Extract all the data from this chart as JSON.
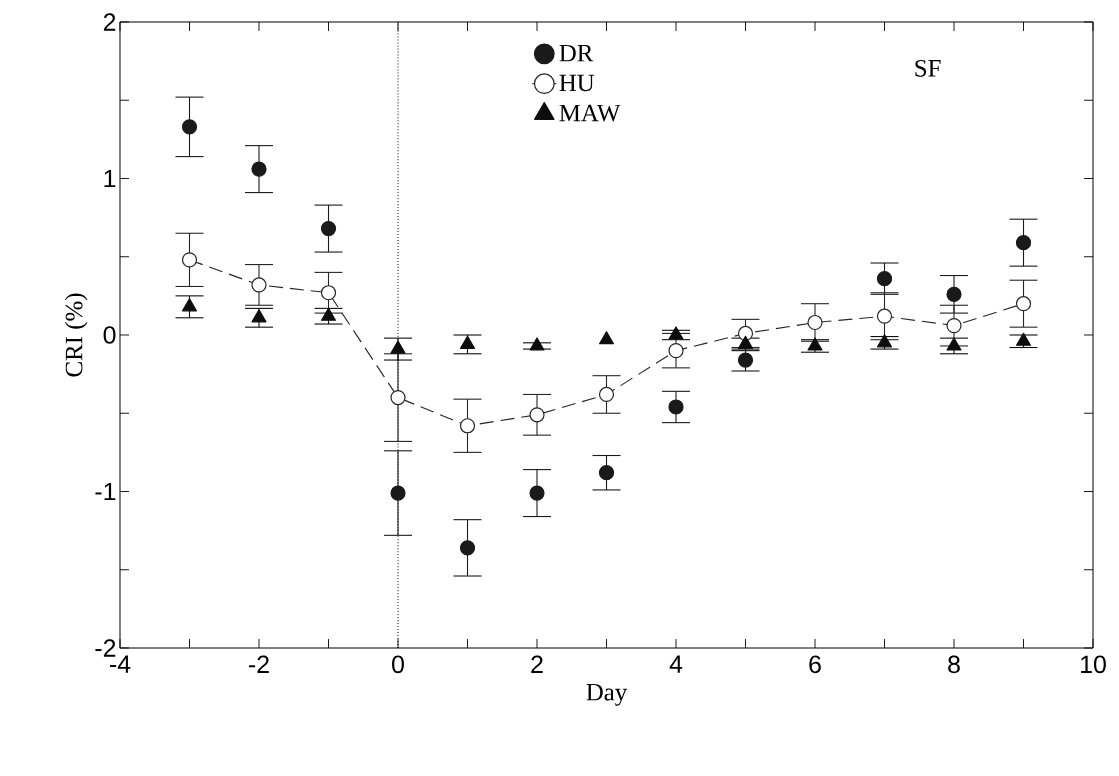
{
  "chart_data": {
    "type": "scatter",
    "xlabel": "Day",
    "ylabel": "CRI (%)",
    "xlim": [
      -4,
      10
    ],
    "ylim": [
      -2,
      2
    ],
    "xticks": [
      -4,
      {
        "value": -3,
        "label": null
      },
      -2,
      {
        "value": -1,
        "label": null
      },
      0,
      {
        "value": 1,
        "label": null
      },
      2,
      {
        "value": 3,
        "label": null
      },
      4,
      {
        "value": 5,
        "label": null
      },
      6,
      {
        "value": 7,
        "label": null
      },
      8,
      {
        "value": 9,
        "label": null
      },
      10
    ],
    "yticks": [
      -2,
      {
        "value": -1.5,
        "label": null
      },
      -1,
      {
        "value": -0.5,
        "label": null
      },
      0,
      {
        "value": 0.5,
        "label": null
      },
      1,
      {
        "value": 1.5,
        "label": null
      },
      2
    ],
    "legend": "top",
    "grid": false,
    "ref_lines": [
      {
        "axis": "x",
        "value": 0,
        "line_style": "dotted",
        "color": "#000000"
      }
    ],
    "annotations": [
      {
        "text": "SF"
      }
    ],
    "series": [
      {
        "name": "DR",
        "marker": "circle",
        "color": "#1a1a1a",
        "x": [
          -3,
          -2,
          -1,
          0,
          1,
          2,
          3,
          4,
          5,
          7,
          8,
          9
        ],
        "values": [
          1.33,
          1.06,
          0.68,
          -1.01,
          -1.36,
          -1.01,
          -0.88,
          -0.46,
          -0.16,
          0.36,
          0.26,
          0.59
        ],
        "errors": [
          0.19,
          0.15,
          0.15,
          0.27,
          0.18,
          0.15,
          0.11,
          0.1,
          0.07,
          0.1,
          0.12,
          0.15
        ]
      },
      {
        "name": "HU",
        "type": "line",
        "marker": "circle",
        "line_style": "dashed",
        "color": "#262626",
        "x": [
          -3,
          -2,
          -1,
          0,
          1,
          2,
          3,
          4,
          5,
          6,
          7,
          8,
          9
        ],
        "values": [
          0.48,
          0.32,
          0.27,
          -0.4,
          -0.58,
          -0.51,
          -0.38,
          -0.1,
          0.01,
          0.08,
          0.12,
          0.06,
          0.2
        ],
        "errors": [
          0.17,
          0.13,
          0.13,
          0.28,
          0.17,
          0.13,
          0.12,
          0.11,
          0.09,
          0.12,
          0.15,
          0.13,
          0.15
        ]
      },
      {
        "name": "MAW",
        "marker": "triangle",
        "color": "#0d0d0d",
        "x": [
          -3,
          -2,
          -1,
          0,
          1,
          2,
          3,
          4,
          5,
          6,
          7,
          8,
          9
        ],
        "values": [
          0.18,
          0.11,
          0.12,
          -0.09,
          -0.06,
          -0.07,
          -0.03,
          0.0,
          -0.06,
          -0.07,
          -0.05,
          -0.07,
          -0.04
        ],
        "errors": [
          0.07,
          0.06,
          0.05,
          0.07,
          0.06,
          0.02,
          null,
          0.03,
          0.04,
          0.04,
          0.04,
          0.05,
          0.04
        ]
      }
    ]
  }
}
